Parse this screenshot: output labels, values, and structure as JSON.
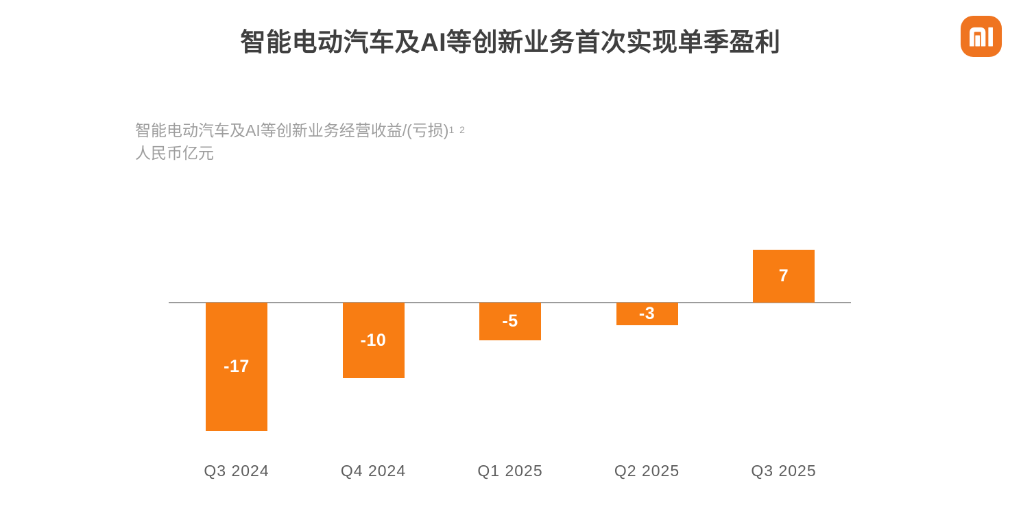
{
  "header": {
    "title": "智能电动汽车及AI等创新业务首次实现单季盈利"
  },
  "logo": {
    "label": "Xiaomi MI logo",
    "background_color": "#ef7420",
    "glyph_color": "#ffffff"
  },
  "chart_data": {
    "type": "bar",
    "title": "智能电动汽车及AI等创新业务首次实现单季盈利",
    "subtitle_line1": "智能电动汽车及AI等创新业务经营收益/(亏损)",
    "subtitle_footnote_markers": "1 2",
    "subtitle_line2": "人民币亿元",
    "ylabel": "人民币亿元",
    "xlabel": "",
    "categories": [
      "Q3 2024",
      "Q4 2024",
      "Q1 2025",
      "Q2 2025",
      "Q3 2025"
    ],
    "values": [
      -17,
      -10,
      -5,
      -3,
      7
    ],
    "value_labels": [
      "-17",
      "-10",
      "-5",
      "-3",
      "7"
    ],
    "ylim": [
      -18,
      8
    ],
    "grid": false,
    "legend": false,
    "bar_color": "#f87d13",
    "value_label_color": "#ffffff",
    "axis_line_color": "#9c9c9c",
    "title_color": "#3f3f3f",
    "subtitle_color": "#9e9e9e",
    "x_label_color": "#5d5d5d"
  }
}
